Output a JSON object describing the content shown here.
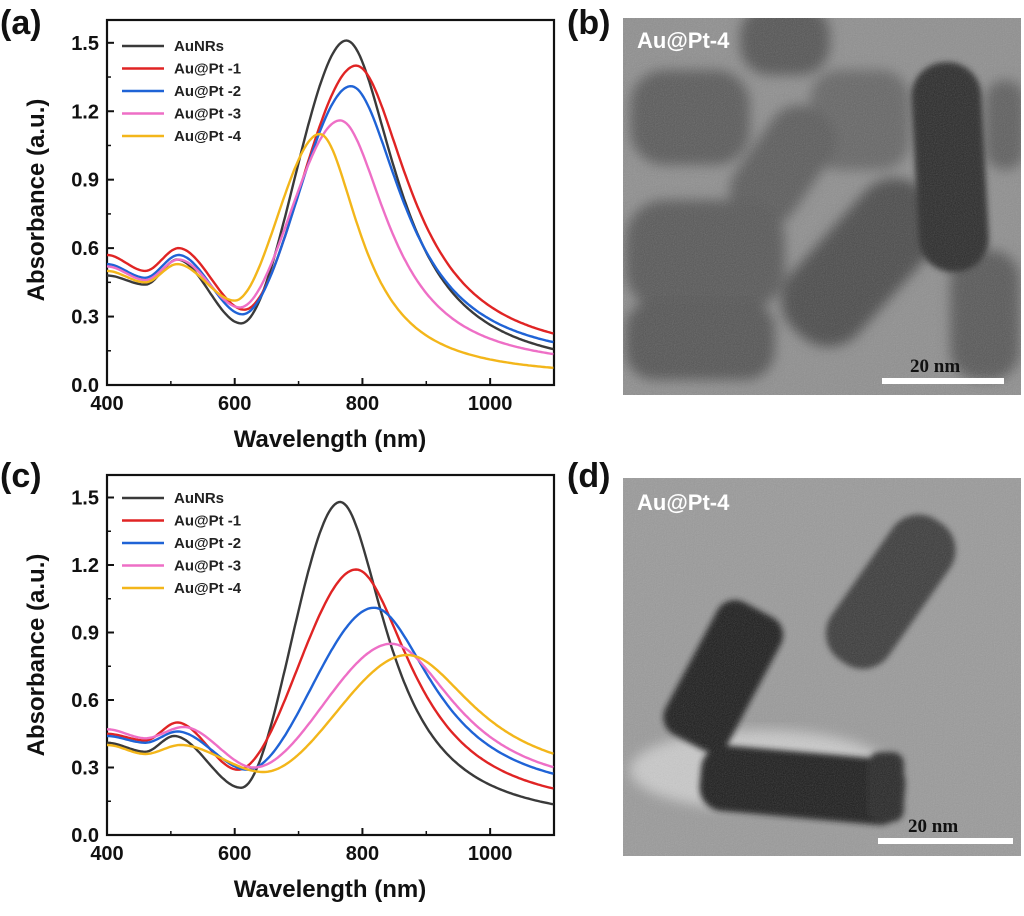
{
  "panels": {
    "a": {
      "label": "(a)"
    },
    "b": {
      "label": "(b)",
      "tem_label": "Au@Pt-4",
      "scale_bar": "20 nm"
    },
    "c": {
      "label": "(c)"
    },
    "d": {
      "label": "(d)",
      "tem_label": "Au@Pt-4",
      "scale_bar": "20 nm"
    }
  },
  "colors": {
    "AuNRs": "#3a3a3a",
    "Au@Pt -1": "#e02424",
    "Au@Pt -2": "#1f63d6",
    "Au@Pt -3": "#ee6fc6",
    "Au@Pt -4": "#f3b61a"
  },
  "chart_data": [
    {
      "type": "line",
      "panel": "a",
      "xlabel": "Wavelength (nm)",
      "ylabel": "Absorbance (a.u.)",
      "xlim": [
        400,
        1100
      ],
      "ylim": [
        0,
        1.6
      ],
      "xticks": [
        400,
        600,
        800,
        1000
      ],
      "yticks": [
        "0.0",
        "0.3",
        "0.6",
        "0.9",
        "1.2",
        "1.5"
      ],
      "legend_position": "top-left",
      "series": [
        {
          "name": "AuNRs",
          "base": [
            0.48,
            0.44
          ],
          "peak1": [
            510,
            0.55
          ],
          "min": [
            610,
            0.27
          ],
          "peak2": [
            775,
            1.51
          ],
          "tail": 0.04
        },
        {
          "name": "Au@Pt -1",
          "base": [
            0.57,
            0.5
          ],
          "peak1": [
            512,
            0.6
          ],
          "min": [
            615,
            0.33
          ],
          "peak2": [
            790,
            1.4
          ],
          "tail": 0.1
        },
        {
          "name": "Au@Pt -2",
          "base": [
            0.53,
            0.47
          ],
          "peak1": [
            512,
            0.57
          ],
          "min": [
            612,
            0.31
          ],
          "peak2": [
            782,
            1.31
          ],
          "tail": 0.08
        },
        {
          "name": "Au@Pt -3",
          "base": [
            0.52,
            0.46
          ],
          "peak1": [
            512,
            0.55
          ],
          "min": [
            608,
            0.34
          ],
          "peak2": [
            765,
            1.16
          ],
          "tail": 0.06
        },
        {
          "name": "Au@Pt -4",
          "base": [
            0.5,
            0.45
          ],
          "peak1": [
            510,
            0.53
          ],
          "min": [
            600,
            0.37
          ],
          "peak2": [
            733,
            1.1
          ],
          "tail": 0.03
        }
      ]
    },
    {
      "type": "line",
      "panel": "c",
      "xlabel": "Wavelength (nm)",
      "ylabel": "Absorbance (a.u.)",
      "xlim": [
        400,
        1100
      ],
      "ylim": [
        0,
        1.6
      ],
      "xticks": [
        400,
        600,
        800,
        1000
      ],
      "yticks": [
        "0.0",
        "0.3",
        "0.6",
        "0.9",
        "1.2",
        "1.5"
      ],
      "legend_position": "top-left",
      "series": [
        {
          "name": "AuNRs",
          "base": [
            0.41,
            0.37
          ],
          "peak1": [
            505,
            0.44
          ],
          "min": [
            610,
            0.21
          ],
          "peak2": [
            765,
            1.48
          ],
          "tail": 0.04
        },
        {
          "name": "Au@Pt -1",
          "base": [
            0.45,
            0.42
          ],
          "peak1": [
            510,
            0.5
          ],
          "min": [
            605,
            0.29
          ],
          "peak2": [
            790,
            1.18
          ],
          "tail": 0.09
        },
        {
          "name": "Au@Pt -2",
          "base": [
            0.44,
            0.41
          ],
          "peak1": [
            510,
            0.46
          ],
          "min": [
            620,
            0.29
          ],
          "peak2": [
            818,
            1.01
          ],
          "tail": 0.15
        },
        {
          "name": "Au@Pt -3",
          "base": [
            0.47,
            0.43
          ],
          "peak1": [
            520,
            0.48
          ],
          "min": [
            630,
            0.3
          ],
          "peak2": [
            845,
            0.85
          ],
          "tail": 0.17
        },
        {
          "name": "Au@Pt -4",
          "base": [
            0.4,
            0.36
          ],
          "peak1": [
            515,
            0.4
          ],
          "min": [
            645,
            0.28
          ],
          "peak2": [
            870,
            0.8
          ],
          "tail": 0.22
        }
      ]
    }
  ]
}
